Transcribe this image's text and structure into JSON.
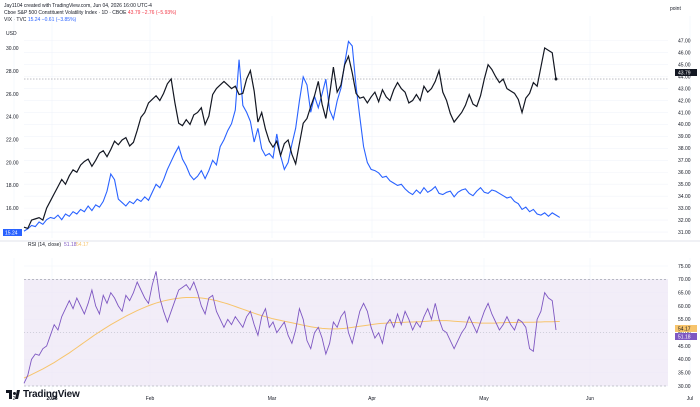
{
  "header": {
    "created_by": "Jay1104 created with TradingView.com, Jun 04, 2026 16:00 UTC-4",
    "main_symbol": "Cboe S&P 500 Constituent Volatility Index · 1D · CBOE",
    "main_values": "43.79 −2.76 (−5.93%)",
    "compare_symbol": "VIX · TVC",
    "compare_values": "15.24 −0.61 (−3.85%)",
    "left_unit": "USD",
    "right_unit": "point",
    "rsi_label": "RSI (14, close)",
    "rsi_value": "51.18",
    "rsi_ma_value": "54.17"
  },
  "brand": {
    "name": "TradingView"
  },
  "colors": {
    "main_series": "#131722",
    "vix_series": "#2962ff",
    "rsi_line": "#7e57c2",
    "rsi_ma": "#f7c46c",
    "rsi_band": "#ede7f6",
    "grid": "#f0f3fa",
    "crosshair": "#787b86"
  },
  "chart_data": [
    {
      "type": "line",
      "x_ticks": [
        "2",
        "2026",
        "Feb",
        "Mar",
        "Apr",
        "May",
        "Jun",
        "Jul"
      ],
      "left_axis": {
        "unit": "USD",
        "ticks": [
          "14.00",
          "16.00",
          "18.00",
          "20.00",
          "22.00",
          "24.00",
          "26.00",
          "28.00",
          "30.00"
        ],
        "ylim": [
          13.4,
          31.6
        ]
      },
      "right_axis": {
        "unit": "point",
        "ticks": [
          "31.00",
          "32.00",
          "33.00",
          "34.00",
          "35.00",
          "36.00",
          "37.00",
          "38.00",
          "39.00",
          "40.00",
          "41.00",
          "42.00",
          "43.00",
          "44.00",
          "45.00",
          "46.00",
          "47.00"
        ],
        "ylim": [
          30.5,
          47.9
        ]
      },
      "series": [
        {
          "axis": "right",
          "last_value": "43.79",
          "values": [
            31.4,
            31.3,
            32.0,
            32.1,
            32.2,
            32.0,
            33.0,
            33.6,
            34.2,
            34.8,
            35.4,
            35.0,
            35.7,
            36.2,
            36.0,
            36.6,
            36.9,
            37.1,
            36.5,
            37.0,
            37.6,
            37.8,
            37.3,
            37.9,
            38.6,
            38.3,
            38.7,
            38.9,
            38.2,
            38.5,
            39.5,
            40.6,
            41.0,
            41.8,
            42.1,
            42.4,
            42.0,
            42.6,
            43.4,
            43.8,
            41.8,
            40.1,
            39.9,
            40.4,
            40.0,
            40.8,
            41.0,
            41.4,
            40.0,
            40.7,
            42.5,
            43.0,
            43.3,
            43.6,
            43.3,
            43.0,
            43.2,
            42.5,
            42.6,
            43.8,
            44.5,
            42.8,
            40.2,
            41.0,
            39.6,
            38.6,
            38.1,
            38.6,
            37.4,
            38.4,
            38.7,
            37.5,
            36.7,
            38.4,
            40.1,
            40.5,
            41.5,
            42.4,
            43.6,
            41.7,
            40.5,
            42.5,
            44.8,
            42.7,
            43.3,
            45.0,
            45.7,
            44.3,
            42.6,
            42.2,
            42.3,
            41.8,
            42.3,
            42.7,
            41.9,
            42.9,
            42.3,
            42.0,
            42.9,
            43.5,
            43.0,
            42.7,
            41.8,
            42.0,
            42.5,
            42.0,
            43.2,
            42.7,
            43.0,
            43.6,
            44.5,
            42.7,
            42.0,
            40.9,
            40.2,
            40.6,
            41.0,
            41.6,
            42.5,
            41.7,
            41.5,
            42.4,
            43.8,
            45.0,
            44.6,
            44.0,
            43.5,
            43.8,
            43.0,
            42.8,
            42.6,
            42.1,
            41.0,
            42.2,
            42.6,
            43.5,
            43.2,
            44.8,
            46.4,
            46.2,
            46.0,
            43.8
          ]
        },
        {
          "name": "VIX",
          "axis": "left",
          "last_value": "15.24",
          "values": [
            14.0,
            14.2,
            14.5,
            14.4,
            14.8,
            14.6,
            15.0,
            15.2,
            15.1,
            15.4,
            15.0,
            15.5,
            15.3,
            15.7,
            15.5,
            15.9,
            15.7,
            16.2,
            15.8,
            16.3,
            16.1,
            16.6,
            17.5,
            19.0,
            18.5,
            16.8,
            16.5,
            16.2,
            16.6,
            16.4,
            16.8,
            16.6,
            17.0,
            16.7,
            17.4,
            18.1,
            17.8,
            18.5,
            19.4,
            20.1,
            20.8,
            21.4,
            20.3,
            19.7,
            18.9,
            18.5,
            18.8,
            19.3,
            18.6,
            19.3,
            20.2,
            19.8,
            21.4,
            22.0,
            22.8,
            23.4,
            24.6,
            29.0,
            25.0,
            24.4,
            23.6,
            21.8,
            23.0,
            21.2,
            20.6,
            20.8,
            20.4,
            22.5,
            20.6,
            19.4,
            20.0,
            21.6,
            23.0,
            25.4,
            27.5,
            26.8,
            24.4,
            25.8,
            24.8,
            26.0,
            27.3,
            24.6,
            23.8,
            25.4,
            26.5,
            28.7,
            30.6,
            30.2,
            26.7,
            24.0,
            21.4,
            20.0,
            19.4,
            19.3,
            19.1,
            18.7,
            18.8,
            18.4,
            18.2,
            18.0,
            18.1,
            17.7,
            17.4,
            17.2,
            17.6,
            17.3,
            17.8,
            17.4,
            17.6,
            17.9,
            17.3,
            17.2,
            17.4,
            17.5,
            17.0,
            17.4,
            17.6,
            17.7,
            17.3,
            17.1,
            17.5,
            17.8,
            17.4,
            17.3,
            17.6,
            17.5,
            17.3,
            17.1,
            16.9,
            17.0,
            16.6,
            16.4,
            15.9,
            16.1,
            15.7,
            15.9,
            15.5,
            15.4,
            15.6,
            15.3,
            15.6,
            15.4,
            15.2
          ]
        }
      ]
    },
    {
      "type": "line",
      "title": "RSI (14, close)",
      "right_axis_ticks": [
        "30.00",
        "35.00",
        "40.00",
        "45.00",
        "50.00",
        "55.00",
        "60.00",
        "65.00",
        "70.00",
        "75.00"
      ],
      "ylim": [
        28.5,
        76.5
      ],
      "band": [
        30,
        70
      ],
      "series": [
        {
          "name": "RSI",
          "last_value": "51.18",
          "values": [
            31.0,
            34.0,
            40.0,
            42.0,
            41.5,
            44.0,
            45.0,
            49.0,
            53.0,
            51.0,
            56.0,
            59.0,
            62.0,
            59.0,
            63.0,
            60.0,
            57.0,
            61.0,
            66.0,
            60.0,
            57.0,
            64.0,
            61.0,
            65.0,
            63.0,
            60.0,
            58.0,
            64.0,
            62.0,
            65.0,
            69.0,
            66.0,
            63.0,
            61.0,
            68.0,
            73.0,
            63.0,
            58.0,
            54.0,
            58.0,
            62.0,
            66.0,
            67.0,
            68.0,
            66.0,
            69.0,
            65.0,
            60.0,
            57.0,
            63.0,
            64.0,
            58.0,
            55.0,
            52.0,
            55.0,
            53.0,
            56.0,
            54.0,
            52.0,
            56.0,
            58.0,
            53.0,
            49.0,
            56.0,
            59.0,
            52.0,
            54.0,
            50.0,
            52.0,
            54.0,
            49.0,
            46.0,
            51.0,
            59.0,
            55.0,
            47.0,
            44.0,
            50.0,
            52.0,
            48.0,
            42.0,
            46.0,
            54.0,
            52.0,
            56.0,
            58.0,
            50.0,
            46.0,
            52.0,
            58.0,
            61.0,
            58.0,
            52.0,
            48.0,
            50.0,
            46.0,
            53.0,
            55.0,
            52.0,
            57.0,
            53.0,
            58.0,
            55.0,
            51.0,
            54.0,
            52.0,
            56.0,
            59.0,
            55.0,
            61.0,
            55.0,
            51.0,
            50.0,
            47.0,
            44.0,
            47.0,
            50.0,
            52.0,
            56.0,
            53.0,
            50.0,
            54.0,
            58.0,
            61.0,
            57.0,
            54.0,
            51.0,
            53.0,
            56.0,
            53.0,
            51.0,
            55.0,
            54.0,
            52.0,
            44.0,
            43.0,
            55.0,
            58.0,
            65.0,
            63.0,
            62.0,
            51.0
          ]
        },
        {
          "name": "RSI-based MA",
          "last_value": "54.17",
          "values": [
            33.0,
            33.6,
            34.3,
            35.0,
            35.7,
            36.4,
            37.2,
            38.0,
            38.8,
            39.7,
            40.6,
            41.5,
            42.4,
            43.4,
            44.4,
            45.4,
            46.4,
            47.4,
            48.4,
            49.4,
            50.3,
            51.2,
            52.1,
            53.0,
            53.8,
            54.6,
            55.4,
            56.2,
            56.9,
            57.6,
            58.3,
            58.9,
            59.5,
            60.1,
            60.6,
            61.1,
            61.5,
            61.9,
            62.2,
            62.5,
            62.7,
            62.9,
            63.1,
            63.2,
            63.2,
            63.2,
            63.1,
            63.0,
            62.8,
            62.6,
            62.3,
            62.0,
            61.6,
            61.2,
            60.8,
            60.3,
            59.8,
            59.3,
            58.8,
            58.3,
            57.8,
            57.3,
            56.8,
            56.4,
            56.0,
            55.6,
            55.2,
            54.9,
            54.6,
            54.3,
            54.0,
            53.7,
            53.4,
            53.1,
            52.8,
            52.5,
            52.2,
            52.0,
            51.8,
            51.6,
            51.5,
            51.4,
            51.4,
            51.4,
            51.5,
            51.6,
            51.8,
            52.0,
            52.2,
            52.4,
            52.6,
            52.8,
            53.0,
            53.2,
            53.4,
            53.5,
            53.6,
            53.7,
            53.8,
            53.8,
            53.8,
            53.9,
            54.0,
            54.0,
            54.1,
            54.1,
            54.2,
            54.3,
            54.4,
            54.5,
            54.5,
            54.5,
            54.5,
            54.4,
            54.3,
            54.2,
            54.1,
            54.0,
            53.9,
            53.8,
            53.7,
            53.6,
            53.6,
            53.6,
            53.6,
            53.6,
            53.7,
            53.7,
            53.8,
            53.8,
            53.8,
            53.9,
            53.9,
            53.9,
            53.9,
            53.9,
            54.0,
            54.0,
            54.1,
            54.1,
            54.1,
            54.2,
            54.17
          ]
        }
      ]
    }
  ]
}
